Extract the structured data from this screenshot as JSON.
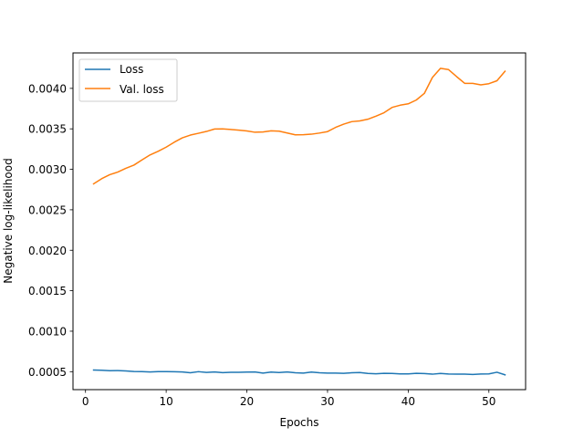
{
  "chart_data": {
    "type": "line",
    "title": "",
    "xlabel": "Epochs",
    "ylabel": "Negative log-likelihood",
    "xlim": [
      -1.55,
      54.55
    ],
    "ylim": [
      0.000278,
      0.004438
    ],
    "xticks": [
      0,
      10,
      20,
      30,
      40,
      50
    ],
    "yticks": [
      0.0005,
      0.001,
      0.0015,
      0.002,
      0.0025,
      0.003,
      0.0035,
      0.004
    ],
    "ytick_labels": [
      "0.0005",
      "0.0010",
      "0.0015",
      "0.0020",
      "0.0025",
      "0.0030",
      "0.0035",
      "0.0040"
    ],
    "xtick_labels": [
      "0",
      "10",
      "20",
      "30",
      "40",
      "50"
    ],
    "grid": false,
    "legend_position": "upper-left",
    "x": [
      1,
      2,
      3,
      4,
      5,
      6,
      7,
      8,
      9,
      10,
      11,
      12,
      13,
      14,
      15,
      16,
      17,
      18,
      19,
      20,
      21,
      22,
      23,
      24,
      25,
      26,
      27,
      28,
      29,
      30,
      31,
      32,
      33,
      34,
      35,
      36,
      37,
      38,
      39,
      40,
      41,
      42,
      43,
      44,
      45,
      46,
      47,
      48,
      49,
      50,
      51,
      52
    ],
    "series": [
      {
        "name": "Loss",
        "color": "#1f77b4",
        "values": [
          0.00052,
          0.000518,
          0.000512,
          0.000513,
          0.000509,
          0.000502,
          0.000501,
          0.000497,
          0.000501,
          0.0005,
          0.000499,
          0.000497,
          0.000487,
          0.0005,
          0.000491,
          0.000496,
          0.000488,
          0.000492,
          0.000492,
          0.000495,
          0.000496,
          0.000483,
          0.000495,
          0.000489,
          0.000496,
          0.000487,
          0.000482,
          0.000495,
          0.000487,
          0.000483,
          0.000482,
          0.00048,
          0.000486,
          0.00049,
          0.000478,
          0.000474,
          0.000479,
          0.000478,
          0.000473,
          0.000473,
          0.00048,
          0.000477,
          0.000469,
          0.000478,
          0.000471,
          0.000469,
          0.000469,
          0.000466,
          0.000471,
          0.000472,
          0.000493,
          0.000461
        ]
      },
      {
        "name": "Val. loss",
        "color": "#ff7f0e",
        "values": [
          0.00282,
          0.002884,
          0.002934,
          0.002966,
          0.003012,
          0.003052,
          0.003116,
          0.003178,
          0.003223,
          0.003274,
          0.003335,
          0.003389,
          0.003423,
          0.003445,
          0.003468,
          0.003498,
          0.0035,
          0.003492,
          0.003484,
          0.003474,
          0.003458,
          0.003462,
          0.003476,
          0.003471,
          0.003449,
          0.003426,
          0.003428,
          0.003434,
          0.003448,
          0.003466,
          0.003518,
          0.003558,
          0.003589,
          0.003598,
          0.003619,
          0.003657,
          0.003699,
          0.003765,
          0.003792,
          0.003809,
          0.003856,
          0.003938,
          0.004135,
          0.004248,
          0.004232,
          0.004145,
          0.004062,
          0.004062,
          0.004044,
          0.004058,
          0.004094,
          0.004212
        ]
      }
    ]
  }
}
